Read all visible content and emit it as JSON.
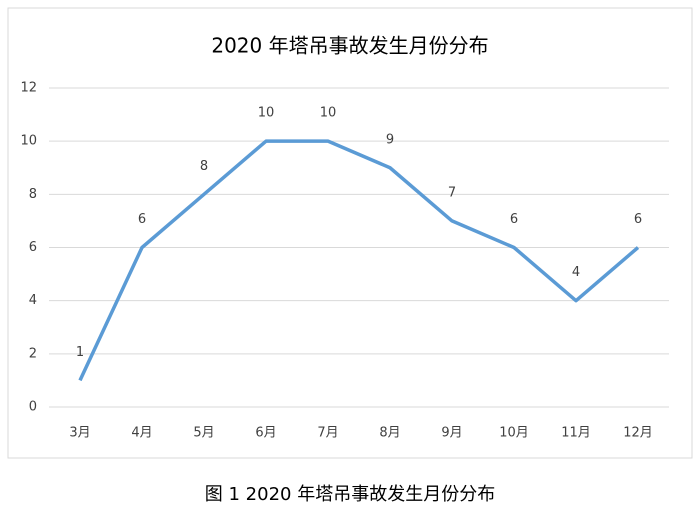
{
  "chart_data": {
    "type": "line",
    "title": "2020 年塔吊事故发生月份分布",
    "categories": [
      "3月",
      "4月",
      "5月",
      "6月",
      "7月",
      "8月",
      "9月",
      "10月",
      "11月",
      "12月"
    ],
    "values": [
      1,
      6,
      8,
      10,
      10,
      9,
      7,
      6,
      4,
      6
    ],
    "color": "#5b9bd5",
    "ylim": [
      0,
      12
    ],
    "yticks": [
      0,
      2,
      4,
      6,
      8,
      10,
      12
    ],
    "grid": true,
    "data_labels": true
  },
  "caption": "图 1  2020 年塔吊事故发生月份分布"
}
